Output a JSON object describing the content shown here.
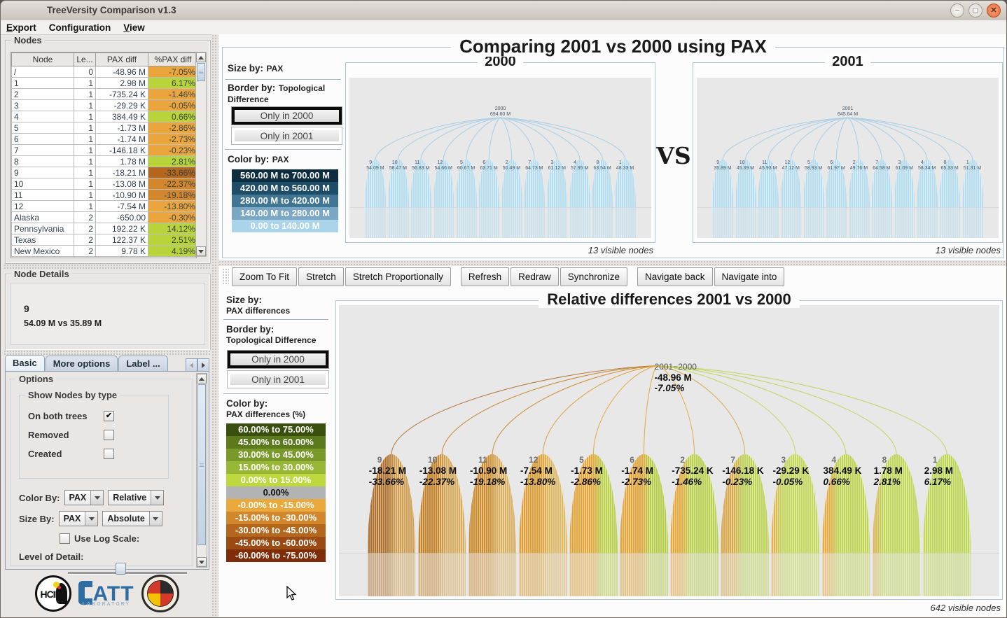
{
  "window": {
    "title": "TreeVersity Comparison v1.3"
  },
  "menu": {
    "items": [
      {
        "label": "Export",
        "underline": 0
      },
      {
        "label": "Configuration",
        "underline": 5
      },
      {
        "label": "View",
        "underline": 0
      }
    ]
  },
  "nodes_panel": {
    "title": "Nodes",
    "columns": [
      "Node",
      "Le...",
      "PAX diff",
      "%PAX diff"
    ],
    "rows": [
      {
        "node": "/",
        "level": "0",
        "pax_diff": "-48.96 M",
        "pct_diff": "-7.05%",
        "pct_color": "#eaa63c"
      },
      {
        "node": "1",
        "level": "1",
        "pax_diff": "2.98 M",
        "pct_diff": "6.17%",
        "pct_color": "#b8d43a"
      },
      {
        "node": "2",
        "level": "1",
        "pax_diff": "-735.24 K",
        "pct_diff": "-1.46%",
        "pct_color": "#eaa63c"
      },
      {
        "node": "3",
        "level": "1",
        "pax_diff": "-29.29 K",
        "pct_diff": "-0.05%",
        "pct_color": "#eaa63c"
      },
      {
        "node": "4",
        "level": "1",
        "pax_diff": "384.49 K",
        "pct_diff": "0.66%",
        "pct_color": "#b8d43a"
      },
      {
        "node": "5",
        "level": "1",
        "pax_diff": "-1.73 M",
        "pct_diff": "-2.86%",
        "pct_color": "#eaa63c"
      },
      {
        "node": "6",
        "level": "1",
        "pax_diff": "-1.74 M",
        "pct_diff": "-2.73%",
        "pct_color": "#eaa63c"
      },
      {
        "node": "7",
        "level": "1",
        "pax_diff": "-146.18 K",
        "pct_diff": "-0.23%",
        "pct_color": "#eaa63c"
      },
      {
        "node": "8",
        "level": "1",
        "pax_diff": "1.78 M",
        "pct_diff": "2.81%",
        "pct_color": "#b8d43a"
      },
      {
        "node": "9",
        "level": "1",
        "pax_diff": "-18.21 M",
        "pct_diff": "-33.66%",
        "pct_color": "#b4661c"
      },
      {
        "node": "10",
        "level": "1",
        "pax_diff": "-13.08 M",
        "pct_diff": "-22.37%",
        "pct_color": "#d2872c"
      },
      {
        "node": "11",
        "level": "1",
        "pax_diff": "-10.90 M",
        "pct_diff": "-19.18%",
        "pct_color": "#d2872c"
      },
      {
        "node": "12",
        "level": "1",
        "pax_diff": "-7.54 M",
        "pct_diff": "-13.80%",
        "pct_color": "#eaa63c"
      },
      {
        "node": "Alaska",
        "level": "2",
        "pax_diff": "-650.00",
        "pct_diff": "-0.30%",
        "pct_color": "#eaa63c"
      },
      {
        "node": "Pennsylvania",
        "level": "2",
        "pax_diff": "192.22 K",
        "pct_diff": "14.12%",
        "pct_color": "#b8d43a"
      },
      {
        "node": "Texas",
        "level": "2",
        "pax_diff": "122.37 K",
        "pct_diff": "2.51%",
        "pct_color": "#b8d43a"
      },
      {
        "node": "New Mexico",
        "level": "2",
        "pax_diff": "9.78 K",
        "pct_diff": "4.19%",
        "pct_color": "#b8d43a"
      }
    ]
  },
  "node_details": {
    "title": "Node Details",
    "id": "9",
    "values": "54.09 M vs 35.89 M"
  },
  "tabs": [
    {
      "label": "Basic",
      "active": true
    },
    {
      "label": "More options",
      "active": false
    },
    {
      "label": "Label ...",
      "active": false
    }
  ],
  "options": {
    "title": "Options",
    "group_title": "Show Nodes by type",
    "checkboxes": [
      {
        "label": "On both trees",
        "checked": true
      },
      {
        "label": "Removed",
        "checked": false
      },
      {
        "label": "Created",
        "checked": false
      }
    ],
    "color_by_label": "Color By:",
    "color_by": [
      "PAX",
      "Relative"
    ],
    "size_by_label": "Size By:",
    "size_by": [
      "PAX",
      "Absolute"
    ],
    "log_scale_label": "Use Log Scale:",
    "log_scale_checked": false,
    "level_label": "Level of Detail:"
  },
  "logos": {
    "hcil": "HCIL",
    "catt": "ATT",
    "catt_sub": "LABORATORY",
    "umd": "UNIVERSITY OF MARYLAND"
  },
  "top_panel": {
    "title": "Comparing 2001 vs 2000 using PAX",
    "vs": "VS",
    "sidebar": {
      "size_by_label": "Size by:",
      "size_by_value": "PAX",
      "border_by_label": "Border by:",
      "border_by_value": "Topological Difference",
      "btn_only_2000": "Only in 2000",
      "btn_only_2001": "Only in 2001",
      "color_by_label": "Color by:",
      "color_by_value": "PAX",
      "legend": [
        {
          "label": "560.00 M to 700.00 M",
          "color": "#0e2e40",
          "text": "#ffffff"
        },
        {
          "label": "420.00 M to 560.00 M",
          "color": "#1e4d68",
          "text": "#ffffff"
        },
        {
          "label": "280.00 M to 420.00 M",
          "color": "#417594",
          "text": "#ffffff"
        },
        {
          "label": "140.00 M to 280.00 M",
          "color": "#7aa7c4",
          "text": "#ffffff"
        },
        {
          "label": "0.00  to 140.00 M",
          "color": "#a9d4ea",
          "text": "#ffffff"
        }
      ]
    },
    "status_2000": "13 visible nodes",
    "status_2001": "13 visible nodes"
  },
  "bottom_panel": {
    "toolbar_groups": [
      [
        "Zoom To Fit",
        "Stretch",
        "Stretch Proportionally"
      ],
      [
        "Refresh",
        "Redraw",
        "Synchronize"
      ],
      [
        "Navigate back",
        "Navigate into"
      ]
    ],
    "title": "Relative differences 2001 vs 2000",
    "sidebar": {
      "size_by_label": "Size by:",
      "size_by_value": "PAX differences",
      "border_by_label": "Border by:",
      "border_by_value": "Topological Difference",
      "btn_only_2000": "Only in 2000",
      "btn_only_2001": "Only in 2001",
      "color_by_label": "Color by:",
      "color_by_value": "PAX differences (%)",
      "legend": [
        {
          "label": "60.00% to 75.00%",
          "color": "#3a4e0e",
          "text": "#ffffff"
        },
        {
          "label": "45.00% to 60.00%",
          "color": "#5a7a1c",
          "text": "#ffffff"
        },
        {
          "label": "30.00% to 45.00%",
          "color": "#79992a",
          "text": "#ffffff"
        },
        {
          "label": "15.00% to 30.00%",
          "color": "#98b737",
          "text": "#ffffff"
        },
        {
          "label": "0.00% to 15.00%",
          "color": "#bdd93f",
          "text": "#ffffff"
        },
        {
          "label": "0.00%",
          "color": "#b3b3b3",
          "text": "#111111"
        },
        {
          "label": "-0.00% to -15.00%",
          "color": "#e9a93c",
          "text": "#ffffff"
        },
        {
          "label": "-15.00% to -30.00%",
          "color": "#d2872c",
          "text": "#ffffff"
        },
        {
          "label": "-30.00% to -45.00%",
          "color": "#b4661c",
          "text": "#ffffff"
        },
        {
          "label": "-45.00% to -60.00%",
          "color": "#9a4a12",
          "text": "#ffffff"
        },
        {
          "label": "-60.00% to -75.00%",
          "color": "#7f2d08",
          "text": "#ffffff"
        }
      ]
    },
    "status": "642 visible nodes"
  },
  "chart_data": [
    {
      "type": "tree",
      "title": "2000",
      "panel": "tree-2000",
      "root": {
        "label": "2000",
        "value": "694.60 M",
        "value_m": 694.6
      },
      "fill": "#b6dcef",
      "curve": "#a6cde4",
      "nodes": [
        {
          "id": "9",
          "value": "54.09 M",
          "value_m": 54.09
        },
        {
          "id": "10",
          "value": "58.47 M",
          "value_m": 58.47
        },
        {
          "id": "11",
          "value": "56.83 M",
          "value_m": 56.83
        },
        {
          "id": "12",
          "value": "54.66 M",
          "value_m": 54.66
        },
        {
          "id": "5",
          "value": "60.67 M",
          "value_m": 60.67
        },
        {
          "id": "6",
          "value": "63.71 M",
          "value_m": 63.71
        },
        {
          "id": "2",
          "value": "50.49 M",
          "value_m": 50.49
        },
        {
          "id": "7",
          "value": "64.73 M",
          "value_m": 64.73
        },
        {
          "id": "3",
          "value": "61.12 M",
          "value_m": 61.12
        },
        {
          "id": "4",
          "value": "57.95 M",
          "value_m": 57.95
        },
        {
          "id": "8",
          "value": "63.54 M",
          "value_m": 63.54
        },
        {
          "id": "1",
          "value": "48.33 M",
          "value_m": 48.33
        }
      ]
    },
    {
      "type": "tree",
      "title": "2001",
      "panel": "tree-2001",
      "root": {
        "label": "2001",
        "value": "645.64 M",
        "value_m": 645.64
      },
      "fill": "#b6dcef",
      "curve": "#a6cde4",
      "nodes": [
        {
          "id": "9",
          "value": "35.89 M",
          "value_m": 35.89
        },
        {
          "id": "10",
          "value": "45.39 M",
          "value_m": 45.39
        },
        {
          "id": "11",
          "value": "45.93 M",
          "value_m": 45.93
        },
        {
          "id": "12",
          "value": "47.12 M",
          "value_m": 47.12
        },
        {
          "id": "5",
          "value": "58.93 M",
          "value_m": 58.93
        },
        {
          "id": "6",
          "value": "61.97 M",
          "value_m": 61.97
        },
        {
          "id": "2",
          "value": "49.76 M",
          "value_m": 49.76
        },
        {
          "id": "7",
          "value": "64.58 M",
          "value_m": 64.58
        },
        {
          "id": "3",
          "value": "61.09 M",
          "value_m": 61.09
        },
        {
          "id": "4",
          "value": "58.34 M",
          "value_m": 58.34
        },
        {
          "id": "8",
          "value": "65.33 M",
          "value_m": 65.33
        },
        {
          "id": "1",
          "value": "51.31 M",
          "value_m": 51.31
        }
      ]
    },
    {
      "type": "tree-diff",
      "title": "Relative differences 2001 vs 2000",
      "panel": "tree-diff",
      "root": {
        "label": "2001−2000",
        "value": "-48.96 M",
        "pct": "-7.05%"
      },
      "nodes": [
        {
          "id": "9",
          "value": "-18.21 M",
          "pct": "-33.66%",
          "c1": "#b07230",
          "c2": "#cfa055",
          "split": 50
        },
        {
          "id": "10",
          "value": "-13.08 M",
          "pct": "-22.37%",
          "c1": "#c4842e",
          "c2": "#d6ac60",
          "split": 50
        },
        {
          "id": "11",
          "value": "-10.90 M",
          "pct": "-19.18%",
          "c1": "#cd8d32",
          "c2": "#d9b165",
          "split": 52
        },
        {
          "id": "12",
          "value": "-7.54 M",
          "pct": "-13.80%",
          "c1": "#dd9f3a",
          "c2": "#dcba68",
          "split": 55
        },
        {
          "id": "5",
          "value": "-1.73 M",
          "pct": "-2.86%",
          "c1": "#e4a73e",
          "c2": "#bdd150",
          "split": 58
        },
        {
          "id": "6",
          "value": "-1.74 M",
          "pct": "-2.73%",
          "c1": "#e2a63d",
          "c2": "#b8cf4e",
          "split": 55
        },
        {
          "id": "2",
          "value": "-735.24 K",
          "pct": "-1.46%",
          "c1": "#e7aa40",
          "c2": "#bad153",
          "split": 32
        },
        {
          "id": "7",
          "value": "-146.18 K",
          "pct": "-0.23%",
          "c1": "#d8a94c",
          "c2": "#bed35a",
          "split": 36
        },
        {
          "id": "3",
          "value": "-29.29 K",
          "pct": "-0.05%",
          "c1": "#e2b04e",
          "c2": "#c4d75f",
          "split": 14
        },
        {
          "id": "4",
          "value": "384.49 K",
          "pct": "0.66%",
          "c1": "#e5ac44",
          "c2": "#c0d557",
          "split": 24
        },
        {
          "id": "8",
          "value": "1.78 M",
          "pct": "2.81%",
          "c1": "#deb456",
          "c2": "#c0d65c",
          "split": 13
        },
        {
          "id": "1",
          "value": "2.98 M",
          "pct": "6.17%",
          "c1": "#c9d75f",
          "c2": "#bed65b",
          "split": 8
        }
      ]
    }
  ]
}
